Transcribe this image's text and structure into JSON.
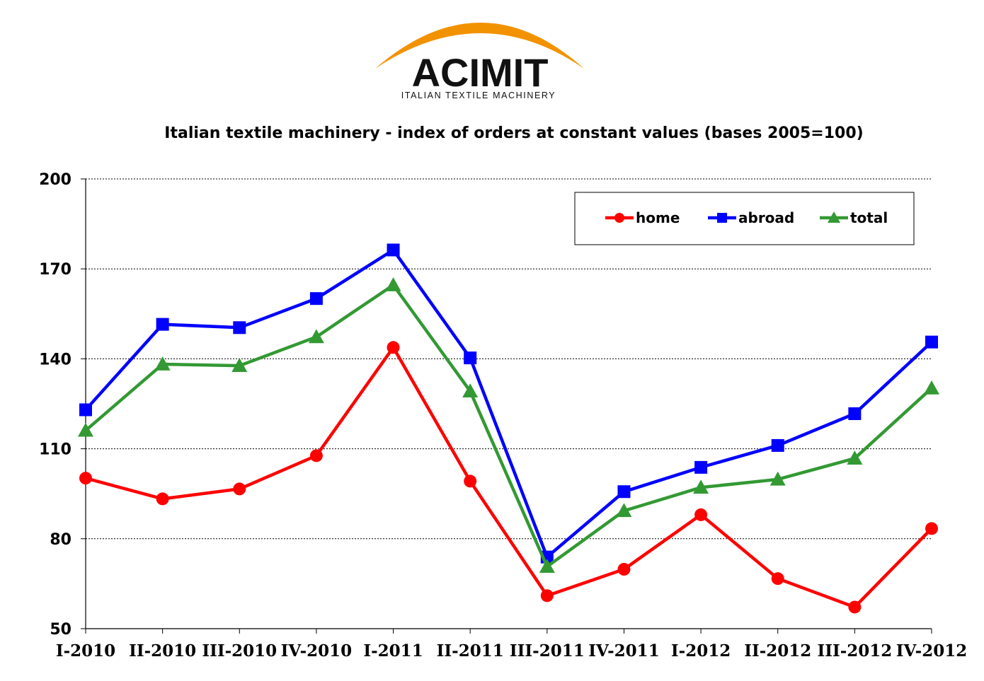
{
  "logo": {
    "brand": "ACIMIT",
    "tagline": "ITALIAN TEXTILE MACHINERY",
    "arc_color": "#F39200"
  },
  "chart_data": {
    "type": "line",
    "title": "Italian textile machinery - index of orders at constant values (bases 2005=100)",
    "xlabel": "",
    "ylabel": "",
    "categories": [
      "I-2010",
      "II-2010",
      "III-2010",
      "IV-2010",
      "I-2011",
      "II-2011",
      "III-2011",
      "IV-2011",
      "I-2012",
      "II-2012",
      "III-2012",
      "IV-2012"
    ],
    "ylim": [
      50,
      200
    ],
    "yticks": [
      50,
      80,
      110,
      140,
      170,
      200
    ],
    "grid": true,
    "legend_position": "top-right",
    "series": [
      {
        "name": "home",
        "color": "#FF0000",
        "marker": "circle",
        "values": [
          100.2,
          93.3,
          96.6,
          107.7,
          143.8,
          99.2,
          61.0,
          69.8,
          88.0,
          66.7,
          57.2,
          83.4
        ]
      },
      {
        "name": "abroad",
        "color": "#0000FF",
        "marker": "square",
        "values": [
          123.0,
          151.5,
          150.4,
          160.1,
          176.3,
          140.3,
          73.9,
          95.7,
          103.8,
          111.1,
          121.7,
          145.6
        ]
      },
      {
        "name": "total",
        "color": "#339933",
        "marker": "triangle",
        "values": [
          116.1,
          138.2,
          137.7,
          147.3,
          164.6,
          129.2,
          70.7,
          89.3,
          97.1,
          99.8,
          106.8,
          130.2
        ]
      }
    ]
  }
}
